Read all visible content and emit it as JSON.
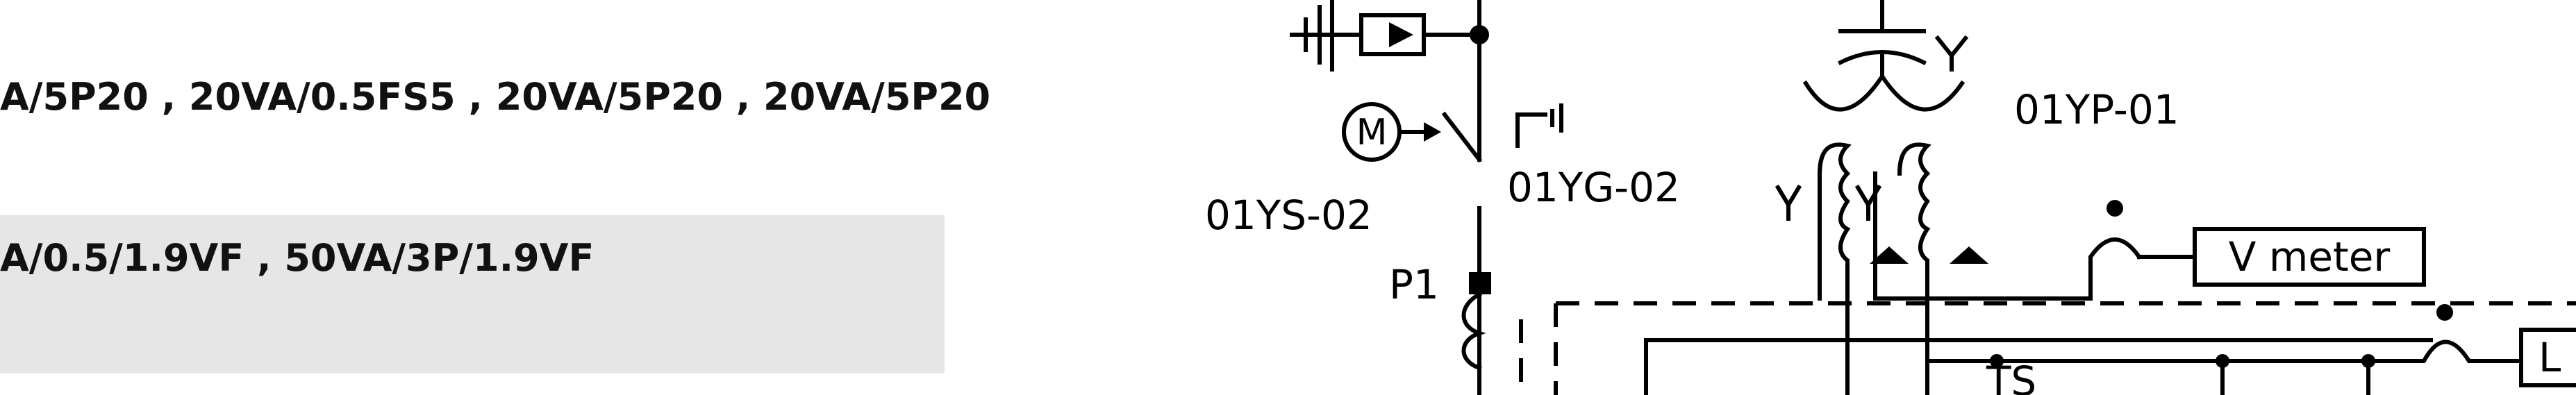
{
  "specs": {
    "line1": "A/5P20 , 20VA/0.5FS5 , 20VA/5P20 , 20VA/5P20",
    "line2": "A/0.5/1.9VF , 50VA/3P/1.9VF"
  },
  "colors": {
    "spec_box_bg": "#e6e6e6",
    "ink": "#000000"
  },
  "diagram": {
    "motor_symbol": "M",
    "switch_label": "01YS-02",
    "ground_label": "01YG-02",
    "cvt_label": "01YP-01",
    "terminal_label": "P1",
    "meter_label": "V meter",
    "partial_label": "L",
    "bottom_partial_label": "TS"
  }
}
